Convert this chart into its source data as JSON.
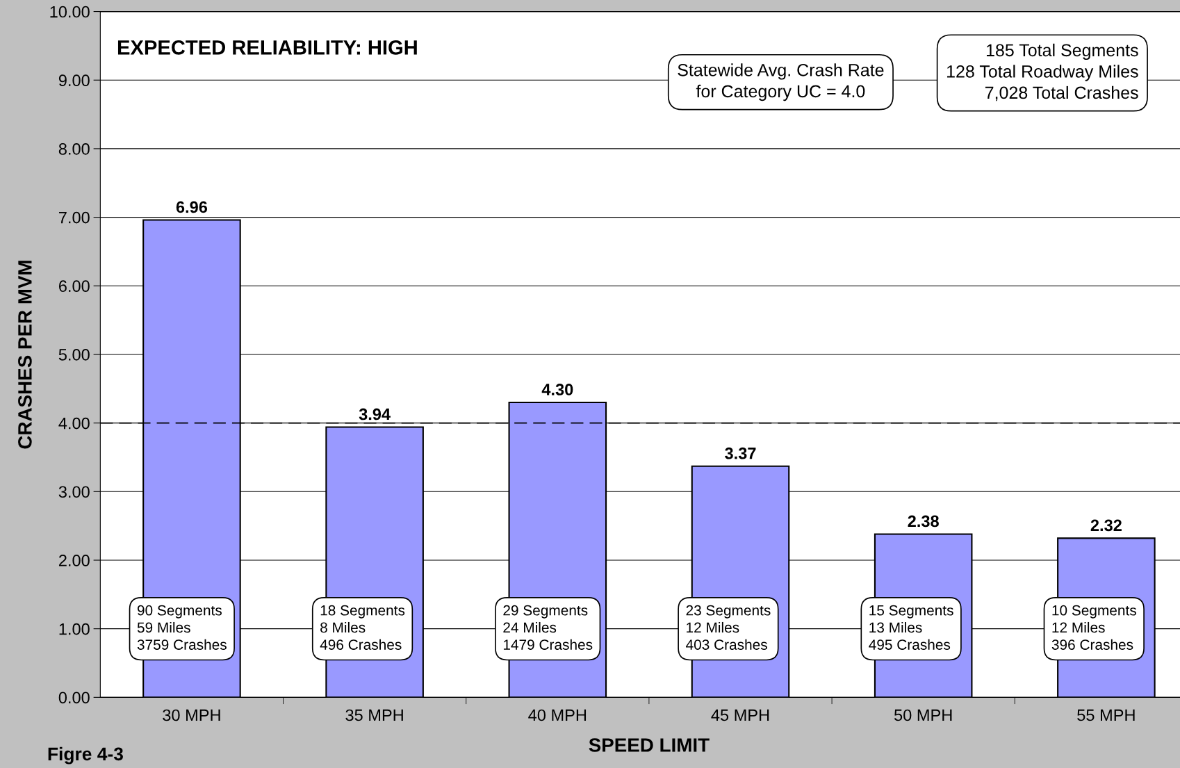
{
  "chart_data": {
    "type": "bar",
    "categories": [
      "30 MPH",
      "35 MPH",
      "40 MPH",
      "45 MPH",
      "50 MPH",
      "55 MPH"
    ],
    "values": [
      6.96,
      3.94,
      4.3,
      3.37,
      2.38,
      2.32
    ],
    "value_labels": [
      "6.96",
      "3.94",
      "4.30",
      "3.37",
      "2.38",
      "2.32"
    ],
    "color": "#9999ff",
    "xlabel": "SPEED LIMIT",
    "ylabel": "CRASHES PER MVM",
    "ylim": [
      0,
      10
    ],
    "yticks": [
      {
        "value": 0,
        "label": "0.00"
      },
      {
        "value": 1,
        "label": "1.00"
      },
      {
        "value": 2,
        "label": "2.00"
      },
      {
        "value": 3,
        "label": "3.00"
      },
      {
        "value": 4,
        "label": "4.00"
      },
      {
        "value": 5,
        "label": "5.00"
      },
      {
        "value": 6,
        "label": "6.00"
      },
      {
        "value": 7,
        "label": "7.00"
      },
      {
        "value": 8,
        "label": "8.00"
      },
      {
        "value": 9,
        "label": "9.00"
      },
      {
        "value": 10,
        "label": "10.00"
      }
    ],
    "grid": "y",
    "ref_lines": [
      {
        "axis": "y",
        "value": 4.0,
        "color": "#000000",
        "line_style": "dashed"
      }
    ],
    "annotations": [
      "EXPECTED RELIABILITY: HIGH",
      "Statewide Avg. Crash Rate\nfor Category UC = 4.0",
      "185 Total Segments\n128 Total Roadway Miles\n7,028 Total Crashes",
      "Figre 4-3",
      "90 Segments\n59 Miles\n3759 Crashes",
      "18 Segments\n8 Miles\n496 Crashes",
      "29 Segments\n24 Miles\n1479 Crashes",
      "23 Segments\n12 Miles\n403 Crashes",
      "15 Segments\n13 Miles\n495 Crashes",
      "10 Segments\n12 Miles\n396 Crashes"
    ]
  }
}
